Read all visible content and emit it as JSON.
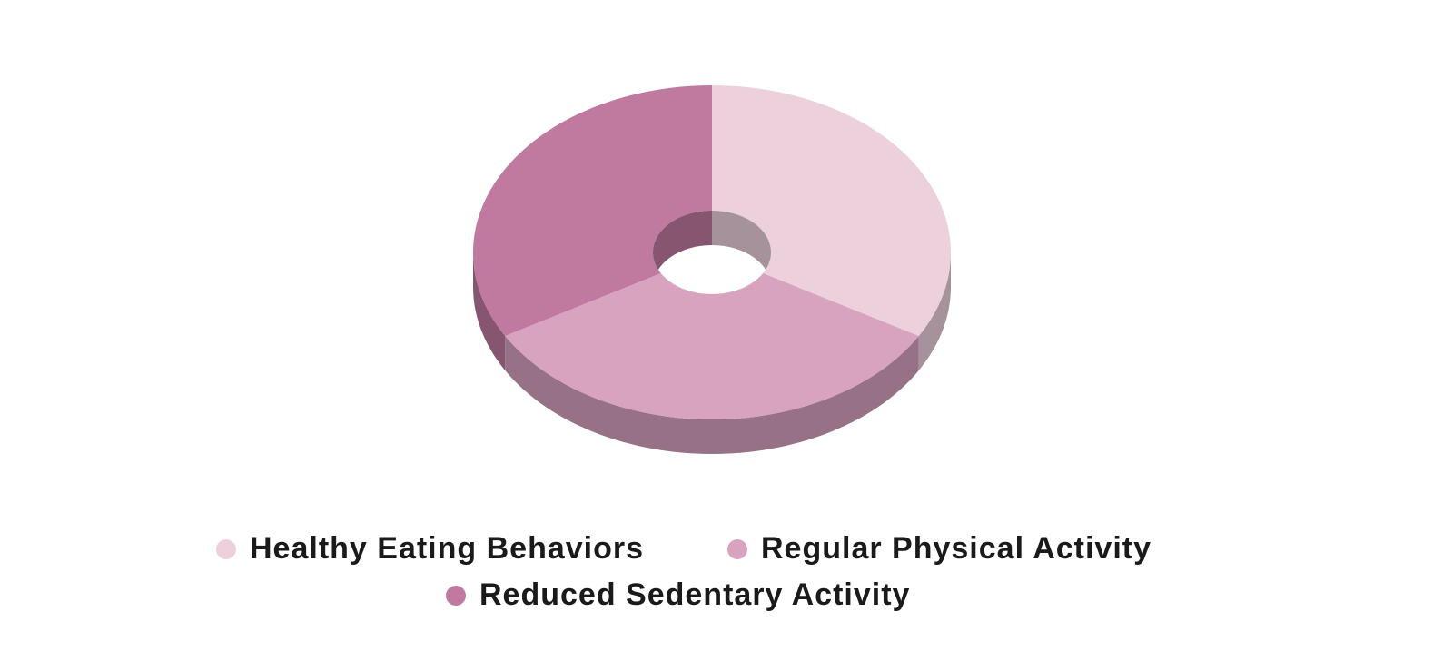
{
  "chart_data": {
    "type": "pie",
    "style": "3d-donut",
    "categories": [
      "Healthy Eating Behaviors",
      "Regular Physical Activity",
      "Reduced Sedentary Activity"
    ],
    "values": [
      33.3,
      33.3,
      33.3
    ],
    "colors": [
      "#ecd0dc",
      "#d7a3bf",
      "#c0799f"
    ],
    "legend": "bottom"
  }
}
